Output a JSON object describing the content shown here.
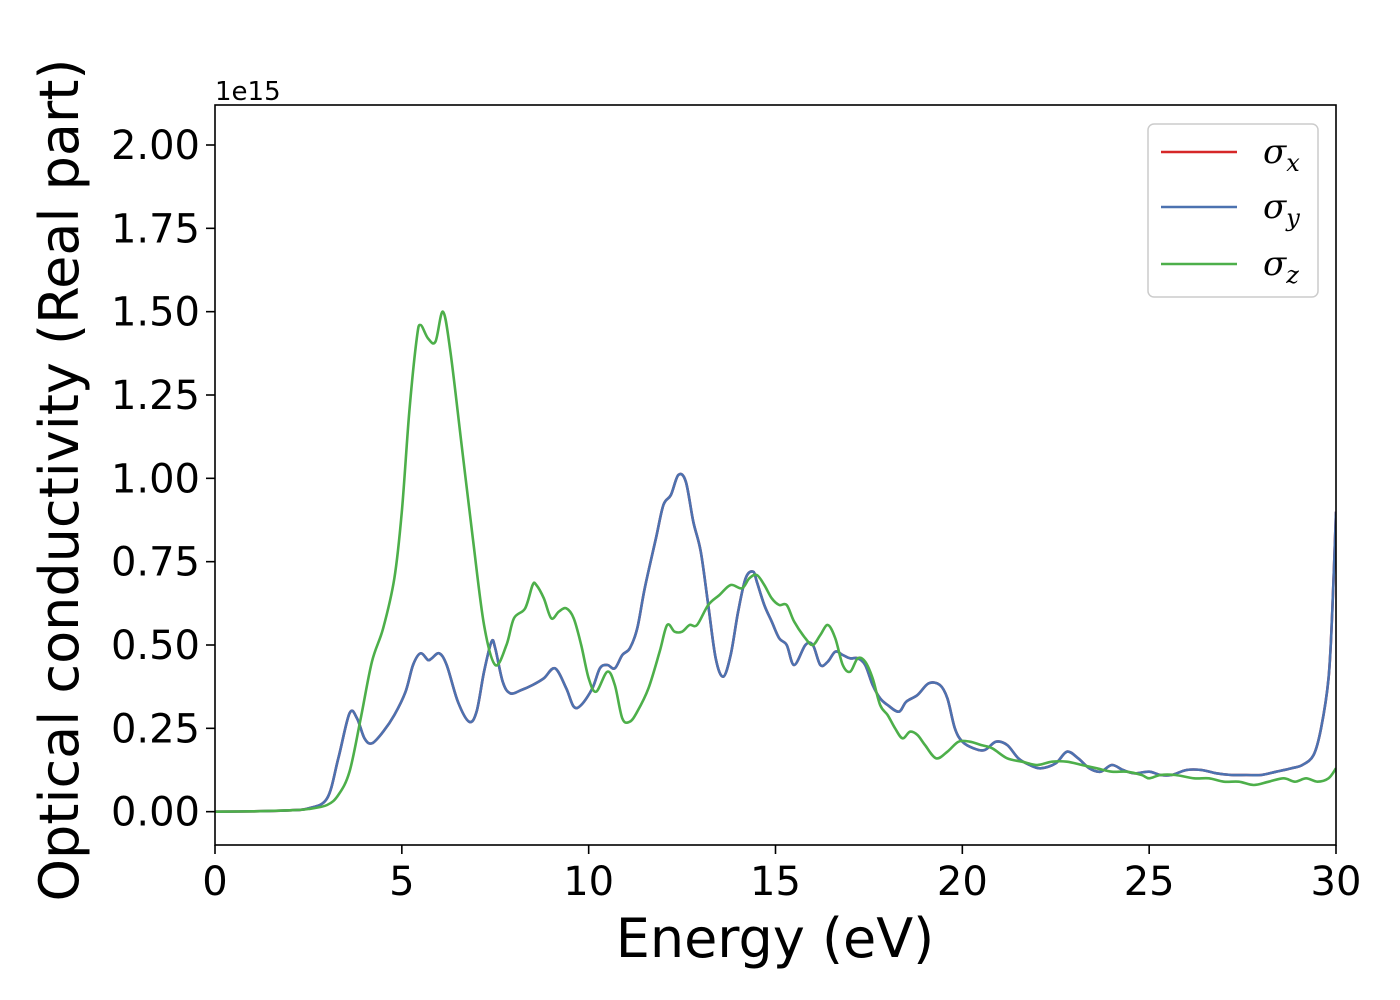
{
  "chart_data": {
    "type": "line",
    "xlabel": "Energy (eV)",
    "ylabel": "Optical conductivity (Real part)",
    "y_offset_label": "1e15",
    "y_scale": 1000000000000000.0,
    "xlim": [
      0,
      30
    ],
    "ylim": [
      -0.1,
      2.12
    ],
    "x_ticks": [
      0,
      5,
      10,
      15,
      20,
      25,
      30
    ],
    "x_tick_labels": [
      "0",
      "5",
      "10",
      "15",
      "20",
      "25",
      "30"
    ],
    "y_ticks": [
      0.0,
      0.25,
      0.5,
      0.75,
      1.0,
      1.25,
      1.5,
      1.75,
      2.0
    ],
    "y_tick_labels": [
      "0.00",
      "0.25",
      "0.50",
      "0.75",
      "1.00",
      "1.25",
      "1.50",
      "1.75",
      "2.00"
    ],
    "grid": false,
    "legend_position": "top-right",
    "series": [
      {
        "name": "σx",
        "legend_symbol": "σ",
        "legend_sub": "x",
        "color": "#d62728",
        "x": [
          0,
          1,
          2,
          2.5,
          3.0,
          3.3,
          3.6,
          3.8,
          4.0,
          4.2,
          4.5,
          4.8,
          5.1,
          5.3,
          5.5,
          5.7,
          5.8,
          6.0,
          6.2,
          6.5,
          6.8,
          7.0,
          7.2,
          7.4,
          7.5,
          7.7,
          7.9,
          8.2,
          8.5,
          8.8,
          9.1,
          9.4,
          9.6,
          9.8,
          10.1,
          10.3,
          10.5,
          10.7,
          10.9,
          11.1,
          11.3,
          11.5,
          11.8,
          12.0,
          12.2,
          12.4,
          12.6,
          12.8,
          13.0,
          13.2,
          13.4,
          13.6,
          13.8,
          14.0,
          14.2,
          14.4,
          14.5,
          14.7,
          14.9,
          15.1,
          15.3,
          15.5,
          15.8,
          16.0,
          16.2,
          16.4,
          16.6,
          16.8,
          17.0,
          17.2,
          17.4,
          17.6,
          17.8,
          18.0,
          18.3,
          18.5,
          18.8,
          19.1,
          19.4,
          19.6,
          19.8,
          20.0,
          20.3,
          20.6,
          20.9,
          21.2,
          21.5,
          21.8,
          22.1,
          22.5,
          22.8,
          23.1,
          23.4,
          23.7,
          24.0,
          24.3,
          24.6,
          25.0,
          25.3,
          25.6,
          26.0,
          26.4,
          26.8,
          27.2,
          27.6,
          28.0,
          28.4,
          28.8,
          29.1,
          29.4,
          29.6,
          29.8,
          29.9,
          30.0
        ],
        "y": [
          0.0,
          0.001,
          0.004,
          0.01,
          0.04,
          0.16,
          0.295,
          0.28,
          0.22,
          0.205,
          0.24,
          0.29,
          0.36,
          0.44,
          0.475,
          0.455,
          0.46,
          0.475,
          0.44,
          0.33,
          0.27,
          0.3,
          0.42,
          0.51,
          0.49,
          0.39,
          0.355,
          0.365,
          0.38,
          0.4,
          0.43,
          0.37,
          0.315,
          0.32,
          0.37,
          0.43,
          0.44,
          0.43,
          0.47,
          0.49,
          0.55,
          0.67,
          0.82,
          0.92,
          0.95,
          1.01,
          0.99,
          0.87,
          0.78,
          0.62,
          0.46,
          0.405,
          0.47,
          0.6,
          0.7,
          0.72,
          0.69,
          0.62,
          0.57,
          0.52,
          0.5,
          0.44,
          0.5,
          0.5,
          0.44,
          0.45,
          0.48,
          0.47,
          0.46,
          0.46,
          0.44,
          0.38,
          0.34,
          0.32,
          0.3,
          0.33,
          0.35,
          0.385,
          0.38,
          0.34,
          0.25,
          0.21,
          0.19,
          0.185,
          0.21,
          0.2,
          0.16,
          0.14,
          0.13,
          0.145,
          0.18,
          0.16,
          0.13,
          0.12,
          0.14,
          0.125,
          0.115,
          0.12,
          0.11,
          0.11,
          0.125,
          0.125,
          0.115,
          0.11,
          0.11,
          0.11,
          0.12,
          0.13,
          0.14,
          0.17,
          0.25,
          0.4,
          0.6,
          0.9
        ]
      },
      {
        "name": "σy",
        "legend_symbol": "σ",
        "legend_sub": "y",
        "color": "#4c72b0",
        "x": [
          0,
          1,
          2,
          2.5,
          3.0,
          3.3,
          3.6,
          3.8,
          4.0,
          4.2,
          4.5,
          4.8,
          5.1,
          5.3,
          5.5,
          5.7,
          5.8,
          6.0,
          6.2,
          6.5,
          6.8,
          7.0,
          7.2,
          7.4,
          7.5,
          7.7,
          7.9,
          8.2,
          8.5,
          8.8,
          9.1,
          9.4,
          9.6,
          9.8,
          10.1,
          10.3,
          10.5,
          10.7,
          10.9,
          11.1,
          11.3,
          11.5,
          11.8,
          12.0,
          12.2,
          12.4,
          12.6,
          12.8,
          13.0,
          13.2,
          13.4,
          13.6,
          13.8,
          14.0,
          14.2,
          14.4,
          14.5,
          14.7,
          14.9,
          15.1,
          15.3,
          15.5,
          15.8,
          16.0,
          16.2,
          16.4,
          16.6,
          16.8,
          17.0,
          17.2,
          17.4,
          17.6,
          17.8,
          18.0,
          18.3,
          18.5,
          18.8,
          19.1,
          19.4,
          19.6,
          19.8,
          20.0,
          20.3,
          20.6,
          20.9,
          21.2,
          21.5,
          21.8,
          22.1,
          22.5,
          22.8,
          23.1,
          23.4,
          23.7,
          24.0,
          24.3,
          24.6,
          25.0,
          25.3,
          25.6,
          26.0,
          26.4,
          26.8,
          27.2,
          27.6,
          28.0,
          28.4,
          28.8,
          29.1,
          29.4,
          29.6,
          29.8,
          29.9,
          30.0
        ],
        "y": [
          0.0,
          0.001,
          0.004,
          0.01,
          0.04,
          0.16,
          0.295,
          0.28,
          0.22,
          0.205,
          0.24,
          0.29,
          0.36,
          0.44,
          0.475,
          0.455,
          0.46,
          0.475,
          0.44,
          0.33,
          0.27,
          0.3,
          0.42,
          0.51,
          0.49,
          0.39,
          0.355,
          0.365,
          0.38,
          0.4,
          0.43,
          0.37,
          0.315,
          0.32,
          0.37,
          0.43,
          0.44,
          0.43,
          0.47,
          0.49,
          0.55,
          0.67,
          0.82,
          0.92,
          0.95,
          1.01,
          0.99,
          0.87,
          0.78,
          0.62,
          0.46,
          0.405,
          0.47,
          0.6,
          0.7,
          0.72,
          0.69,
          0.62,
          0.57,
          0.52,
          0.5,
          0.44,
          0.5,
          0.5,
          0.44,
          0.45,
          0.48,
          0.47,
          0.46,
          0.46,
          0.44,
          0.38,
          0.34,
          0.32,
          0.3,
          0.33,
          0.35,
          0.385,
          0.38,
          0.34,
          0.25,
          0.21,
          0.19,
          0.185,
          0.21,
          0.2,
          0.16,
          0.14,
          0.13,
          0.145,
          0.18,
          0.16,
          0.13,
          0.12,
          0.14,
          0.125,
          0.115,
          0.12,
          0.11,
          0.11,
          0.125,
          0.125,
          0.115,
          0.11,
          0.11,
          0.11,
          0.12,
          0.13,
          0.14,
          0.17,
          0.25,
          0.4,
          0.6,
          0.9
        ]
      },
      {
        "name": "σz",
        "legend_symbol": "σ",
        "legend_sub": "z",
        "color": "#4daf4a",
        "x": [
          0,
          1,
          2,
          2.5,
          3.0,
          3.3,
          3.6,
          3.9,
          4.2,
          4.5,
          4.8,
          5.0,
          5.2,
          5.4,
          5.5,
          5.7,
          5.9,
          6.1,
          6.3,
          6.6,
          6.9,
          7.2,
          7.5,
          7.8,
          8.0,
          8.3,
          8.5,
          8.6,
          8.8,
          9.0,
          9.2,
          9.4,
          9.6,
          9.8,
          10.0,
          10.2,
          10.5,
          10.7,
          10.9,
          11.1,
          11.3,
          11.6,
          11.9,
          12.1,
          12.3,
          12.5,
          12.7,
          12.9,
          13.2,
          13.5,
          13.8,
          14.1,
          14.3,
          14.5,
          14.7,
          14.9,
          15.1,
          15.3,
          15.5,
          15.8,
          16.0,
          16.2,
          16.4,
          16.6,
          16.8,
          17.0,
          17.2,
          17.4,
          17.6,
          17.8,
          18.0,
          18.2,
          18.4,
          18.6,
          18.8,
          19.0,
          19.3,
          19.6,
          19.9,
          20.2,
          20.5,
          20.8,
          21.2,
          21.6,
          22.0,
          22.4,
          22.8,
          23.2,
          23.6,
          24.0,
          24.4,
          24.8,
          25.0,
          25.3,
          25.7,
          26.2,
          26.6,
          27.0,
          27.4,
          27.8,
          28.2,
          28.6,
          28.9,
          29.2,
          29.5,
          29.8,
          30.0
        ],
        "y": [
          0.0,
          0.001,
          0.004,
          0.008,
          0.02,
          0.05,
          0.12,
          0.28,
          0.45,
          0.55,
          0.7,
          0.9,
          1.2,
          1.42,
          1.46,
          1.42,
          1.41,
          1.5,
          1.38,
          1.1,
          0.82,
          0.56,
          0.44,
          0.5,
          0.58,
          0.61,
          0.68,
          0.68,
          0.64,
          0.58,
          0.6,
          0.61,
          0.58,
          0.5,
          0.4,
          0.36,
          0.42,
          0.38,
          0.28,
          0.27,
          0.3,
          0.37,
          0.48,
          0.56,
          0.54,
          0.54,
          0.56,
          0.56,
          0.62,
          0.65,
          0.68,
          0.67,
          0.7,
          0.71,
          0.68,
          0.64,
          0.62,
          0.62,
          0.57,
          0.52,
          0.5,
          0.53,
          0.56,
          0.52,
          0.44,
          0.42,
          0.46,
          0.45,
          0.4,
          0.32,
          0.29,
          0.25,
          0.22,
          0.24,
          0.23,
          0.2,
          0.16,
          0.18,
          0.21,
          0.21,
          0.2,
          0.19,
          0.16,
          0.15,
          0.14,
          0.15,
          0.15,
          0.14,
          0.13,
          0.12,
          0.12,
          0.11,
          0.1,
          0.11,
          0.11,
          0.1,
          0.1,
          0.09,
          0.09,
          0.08,
          0.09,
          0.1,
          0.09,
          0.1,
          0.09,
          0.1,
          0.13
        ]
      }
    ]
  }
}
